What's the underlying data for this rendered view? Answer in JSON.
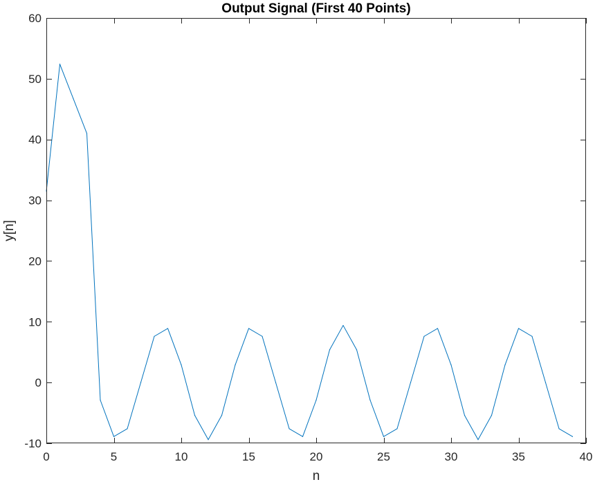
{
  "chart_data": {
    "type": "line",
    "title": "Output Signal (First 40 Points)",
    "xlabel": "n",
    "ylabel": "y[n]",
    "xlim": [
      0,
      40
    ],
    "ylim": [
      -10,
      60
    ],
    "xticks": [
      0,
      5,
      10,
      15,
      20,
      25,
      30,
      35,
      40
    ],
    "yticks": [
      -10,
      0,
      10,
      20,
      30,
      40,
      50,
      60
    ],
    "grid": false,
    "line_color": "#0072BD",
    "series": [
      {
        "x": [
          0,
          1,
          2,
          3,
          4,
          5,
          6,
          7,
          8,
          9,
          10,
          11,
          12,
          13,
          14,
          15,
          16,
          17,
          18,
          19,
          20,
          21,
          22,
          23,
          24,
          25,
          26,
          27,
          28,
          29,
          30,
          31,
          32,
          33,
          34,
          35,
          36,
          37,
          38,
          39
        ],
        "values": [
          31.5,
          52.4,
          46.7,
          41.0,
          -2.9,
          -8.9,
          -7.6,
          0.0,
          7.6,
          8.9,
          2.9,
          -5.4,
          -9.4,
          -5.4,
          2.9,
          8.9,
          7.6,
          0.0,
          -7.6,
          -8.9,
          -2.9,
          5.4,
          9.4,
          5.4,
          -2.9,
          -8.9,
          -7.6,
          0.0,
          7.6,
          8.9,
          2.9,
          -5.4,
          -9.4,
          -5.4,
          2.9,
          8.9,
          7.6,
          0.0,
          -7.6,
          -8.9
        ]
      }
    ]
  }
}
